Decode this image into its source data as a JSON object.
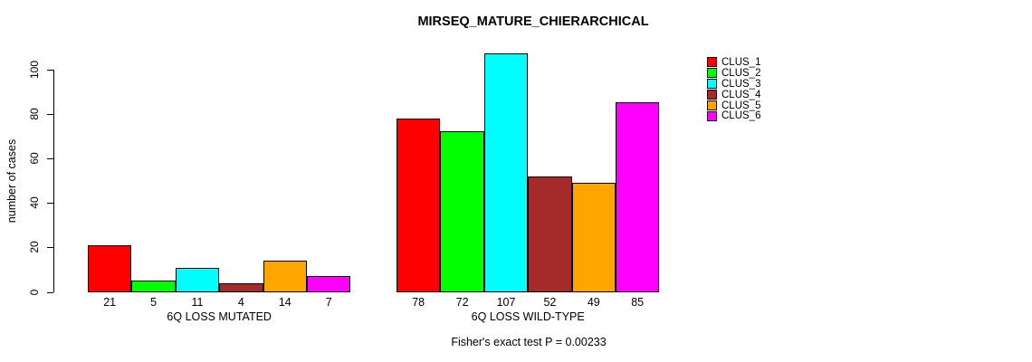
{
  "chart_data": {
    "type": "bar",
    "title": "MIRSEQ_MATURE_CHIERARCHICAL",
    "ylabel": "number of cases",
    "footnote": "Fisher's exact test P = 0.00233",
    "groups": [
      "6Q LOSS MUTATED",
      "6Q LOSS WILD-TYPE"
    ],
    "series": [
      {
        "name": "CLUS_1",
        "color": "#FF0000",
        "values": [
          21,
          78
        ]
      },
      {
        "name": "CLUS_2",
        "color": "#00FF00",
        "values": [
          5,
          72
        ]
      },
      {
        "name": "CLUS_3",
        "color": "#00FFFF",
        "values": [
          11,
          107
        ]
      },
      {
        "name": "CLUS_4",
        "color": "#A52A2A",
        "values": [
          4,
          52
        ]
      },
      {
        "name": "CLUS_5",
        "color": "#FFA500",
        "values": [
          14,
          49
        ]
      },
      {
        "name": "CLUS_6",
        "color": "#FF00FF",
        "values": [
          7,
          85
        ]
      }
    ],
    "bar_value_labels": [
      [
        21,
        5,
        11,
        4,
        14,
        7
      ],
      [
        78,
        72,
        107,
        52,
        49,
        85
      ]
    ],
    "y_ticks": [
      0,
      20,
      40,
      60,
      80,
      100
    ],
    "ylim": [
      0,
      100
    ],
    "grid": false,
    "legend_position": "right",
    "bar_border_color": "#000000",
    "background_color": "#FFFFFF"
  }
}
